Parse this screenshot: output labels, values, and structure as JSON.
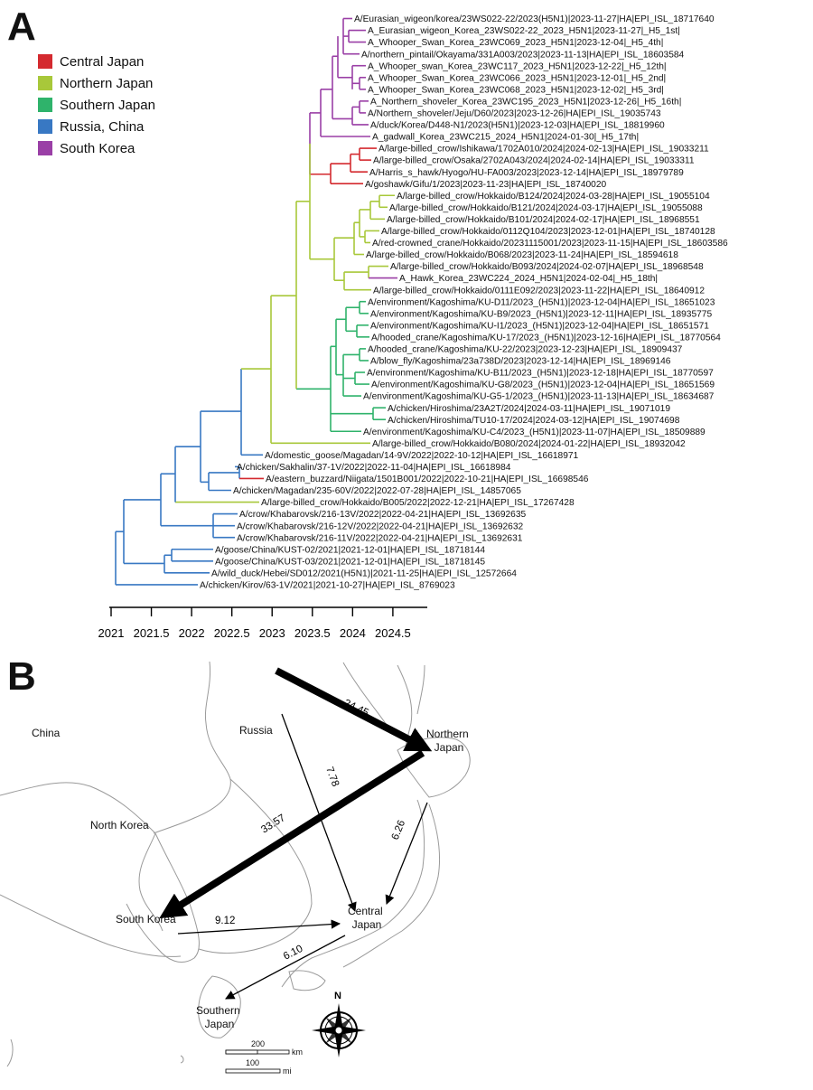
{
  "panels": {
    "a": "A",
    "b": "B"
  },
  "legend": [
    {
      "label": "Central Japan",
      "color": "#d42a2f"
    },
    {
      "label": "Northern Japan",
      "color": "#a8c83a"
    },
    {
      "label": "Southern Japan",
      "color": "#2fb36b"
    },
    {
      "label": "Russia, China",
      "color": "#3878c3"
    },
    {
      "label": "South Korea",
      "color": "#9a3fa6"
    }
  ],
  "tree": {
    "axis_ticks": [
      "2021",
      "2021.5",
      "2022",
      "2022.5",
      "2023",
      "2023.5",
      "2024",
      "2024.5"
    ],
    "tips": [
      "A/Eurasian_wigeon/korea/23WS022-22/2023(H5N1)|2023-11-27|HA|EPI_ISL_18717640",
      "A_Eurasian_wigeon_Korea_23WS022-22_2023_H5N1|2023-11-27|_H5_1st|",
      "A_Whooper_Swan_Korea_23WC069_2023_H5N1|2023-12-04|_H5_4th|",
      "A/northern_pintail/Okayama/331A003/2023|2023-11-13|HA|EPI_ISL_18603584",
      "A_Whooper_swan_Korea_23WC117_2023_H5N1|2023-12-22|_H5_12th|",
      "A_Whooper_Swan_Korea_23WC066_2023_H5N1|2023-12-01|_H5_2nd|",
      "A_Whooper_Swan_Korea_23WC068_2023_H5N1|2023-12-02|_H5_3rd|",
      "A_Northern_shoveler_Korea_23WC195_2023_H5N1|2023-12-26|_H5_16th|",
      "A/Northern_shoveler/Jeju/D60/2023|2023-12-26|HA|EPI_ISL_19035743",
      "A/duck/Korea/D448-N1/2023(H5N1)|2023-12-03|HA|EPI_ISL_18819960",
      "A_gadwall_Korea_23WC215_2024_H5N1|2024-01-30|_H5_17th|",
      "A/large-billed_crow/Ishikawa/1702A010/2024|2024-02-13|HA|EPI_ISL_19033211",
      "A/large-billed_crow/Osaka/2702A043/2024|2024-02-14|HA|EPI_ISL_19033311",
      "A/Harris_s_hawk/Hyogo/HU-FA003/2023|2023-12-14|HA|EPI_ISL_18979789",
      "A/goshawk/Gifu/1/2023|2023-11-23|HA|EPI_ISL_18740020",
      "A/large-billed_crow/Hokkaido/B124/2024|2024-03-28|HA|EPI_ISL_19055104",
      "A/large-billed_crow/Hokkaido/B121/2024|2024-03-17|HA|EPI_ISL_19055088",
      "A/large-billed_crow/Hokkaido/B101/2024|2024-02-17|HA|EPI_ISL_18968551",
      "A/large-billed_crow/Hokkaido/0112Q104/2023|2023-12-01|HA|EPI_ISL_18740128",
      "A/red-crowned_crane/Hokkaido/20231115001/2023|2023-11-15|HA|EPI_ISL_18603586",
      "A/large-billed_crow/Hokkaido/B068/2023|2023-11-24|HA|EPI_ISL_18594618",
      "A/large-billed_crow/Hokkaido/B093/2024|2024-02-07|HA|EPI_ISL_18968548",
      "A_Hawk_Korea_23WC224_2024_H5N1|2024-02-04|_H5_18th|",
      "A/large-billed_crow/Hokkaido/0111E092/2023|2023-11-22|HA|EPI_ISL_18640912",
      "A/environment/Kagoshima/KU-D11/2023_(H5N1)|2023-12-04|HA|EPI_ISL_18651023",
      "A/environment/Kagoshima/KU-B9/2023_(H5N1)|2023-12-11|HA|EPI_ISL_18935775",
      "A/environment/Kagoshima/KU-I1/2023_(H5N1)|2023-12-04|HA|EPI_ISL_18651571",
      "A/hooded_crane/Kagoshima/KU-17/2023_(H5N1)|2023-12-16|HA|EPI_ISL_18770564",
      "A/hooded_crane/Kagoshima/KU-22/2023|2023-12-23|HA|EPI_ISL_18909437",
      "A/blow_fly/Kagoshima/23a738D/2023|2023-12-14|HA|EPI_ISL_18969146",
      "A/environment/Kagoshima/KU-B11/2023_(H5N1)|2023-12-18|HA|EPI_ISL_18770597",
      "A/environment/Kagoshima/KU-G8/2023_(H5N1)|2023-12-04|HA|EPI_ISL_18651569",
      "A/environment/Kagoshima/KU-G5-1/2023_(H5N1)|2023-11-13|HA|EPI_ISL_18634687",
      "A/chicken/Hiroshima/23A2T/2024|2024-03-11|HA|EPI_ISL_19071019",
      "A/chicken/Hiroshima/TU10-17/2024|2024-03-12|HA|EPI_ISL_19074698",
      "A/environment/Kagoshima/KU-C4/2023_(H5N1)|2023-11-07|HA|EPI_ISL_18509889",
      "A/large-billed_crow/Hokkaido/B080/2024|2024-01-22|HA|EPI_ISL_18932042",
      "A/domestic_goose/Magadan/14-9V/2022|2022-10-12|HA|EPI_ISL_16618971",
      "A/chicken/Sakhalin/37-1V/2022|2022-11-04|HA|EPI_ISL_16618984",
      "A/eastern_buzzard/Niigata/1501B001/2022|2022-10-21|HA|EPI_ISL_16698546",
      "A/chicken/Magadan/235-60V/2022|2022-07-28|HA|EPI_ISL_14857065",
      "A/large-billed_crow/Hokkaido/B005/2022|2022-12-21|HA|EPI_ISL_17267428",
      "A/crow/Khabarovsk/216-13V/2022|2022-04-21|HA|EPI_ISL_13692635",
      "A/crow/Khabarovsk/216-12V/2022|2022-04-21|HA|EPI_ISL_13692632",
      "A/crow/Khabarovsk/216-11V/2022|2022-04-21|HA|EPI_ISL_13692631",
      "A/goose/China/KUST-02/2021|2021-12-01|HA|EPI_ISL_18718144",
      "A/goose/China/KUST-03/2021|2021-12-01|HA|EPI_ISL_18718145",
      "A/wild_duck/Hebei/SD012/2021(H5N1)|2021-11-25|HA|EPI_ISL_12572664",
      "A/chicken/Kirov/63-1V/2021|2021-10-27|HA|EPI_ISL_8769023"
    ]
  },
  "map": {
    "labels": {
      "china": "China",
      "russia": "Russia",
      "north_korea": "North Korea",
      "south_korea": "South Korea",
      "northern_japan": "Northern Japan",
      "central_japan": "Central Japan",
      "southern_japan": "Southern Japan"
    },
    "migration_rates": {
      "russia_to_northern_japan": "24.45",
      "northern_japan_to_south_korea": "33.57",
      "russia_to_central_japan": "7.78",
      "northern_japan_to_central_japan": "6.26",
      "south_korea_to_central_japan": "9.12",
      "central_japan_to_southern_japan": "6.10"
    },
    "scale": {
      "km_value": "200",
      "km_unit": "km",
      "mi_value": "100",
      "mi_unit": "mi"
    },
    "compass": "N"
  }
}
